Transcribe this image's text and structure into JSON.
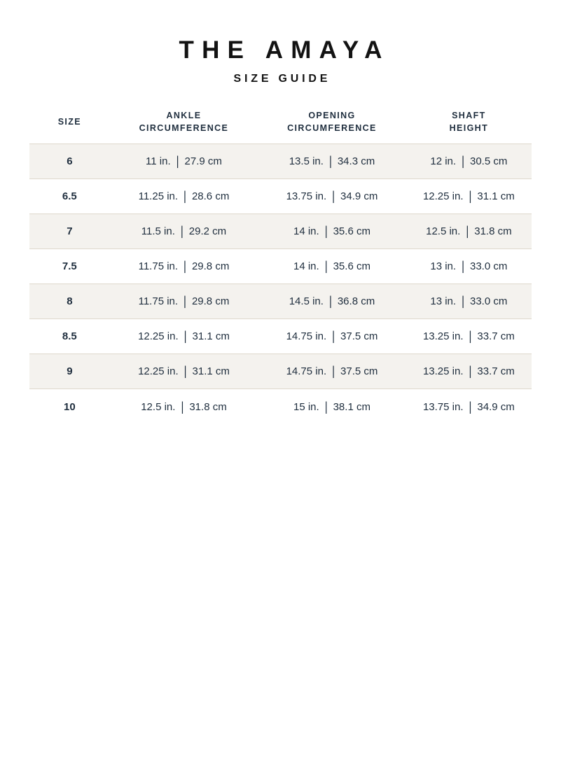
{
  "page": {
    "title": "THE AMAYA",
    "subtitle": "SIZE GUIDE"
  },
  "table": {
    "unit_separator": "|",
    "headers": [
      {
        "id": "size",
        "lines": [
          "SIZE"
        ]
      },
      {
        "id": "ankle-circumference",
        "lines": [
          "ANKLE",
          "CIRCUMFERENCE"
        ]
      },
      {
        "id": "opening-circumference",
        "lines": [
          "OPENING",
          "CIRCUMFERENCE"
        ]
      },
      {
        "id": "shaft-height",
        "lines": [
          "SHAFT",
          "HEIGHT"
        ]
      }
    ],
    "rows": [
      {
        "size": "6",
        "cells": [
          [
            "11 in.",
            "27.9 cm"
          ],
          [
            "13.5 in.",
            "34.3 cm"
          ],
          [
            "12 in.",
            "30.5 cm"
          ]
        ]
      },
      {
        "size": "6.5",
        "cells": [
          [
            "11.25 in.",
            "28.6 cm"
          ],
          [
            "13.75 in.",
            "34.9 cm"
          ],
          [
            "12.25 in.",
            "31.1 cm"
          ]
        ]
      },
      {
        "size": "7",
        "cells": [
          [
            "11.5 in.",
            "29.2 cm"
          ],
          [
            "14 in.",
            "35.6 cm"
          ],
          [
            "12.5 in.",
            "31.8 cm"
          ]
        ]
      },
      {
        "size": "7.5",
        "cells": [
          [
            "11.75 in.",
            "29.8 cm"
          ],
          [
            "14 in.",
            "35.6 cm"
          ],
          [
            "13 in.",
            "33.0 cm"
          ]
        ]
      },
      {
        "size": "8",
        "cells": [
          [
            "11.75 in.",
            "29.8 cm"
          ],
          [
            "14.5 in.",
            "36.8 cm"
          ],
          [
            "13 in.",
            "33.0 cm"
          ]
        ]
      },
      {
        "size": "8.5",
        "cells": [
          [
            "12.25 in.",
            "31.1 cm"
          ],
          [
            "14.75 in.",
            "37.5 cm"
          ],
          [
            "13.25 in.",
            "33.7 cm"
          ]
        ]
      },
      {
        "size": "9",
        "cells": [
          [
            "12.25 in.",
            "31.1 cm"
          ],
          [
            "14.75 in.",
            "37.5 cm"
          ],
          [
            "13.25 in.",
            "33.7 cm"
          ]
        ]
      },
      {
        "size": "10",
        "cells": [
          [
            "12.5 in.",
            "31.8 cm"
          ],
          [
            "15 in.",
            "38.1 cm"
          ],
          [
            "13.75 in.",
            "34.9 cm"
          ]
        ]
      }
    ]
  },
  "colors": {
    "heading_text": "#131313",
    "table_text": "#1f2e3e",
    "shaded_row_bg": "#f4f2ee",
    "row_border": "#ded8cc"
  }
}
